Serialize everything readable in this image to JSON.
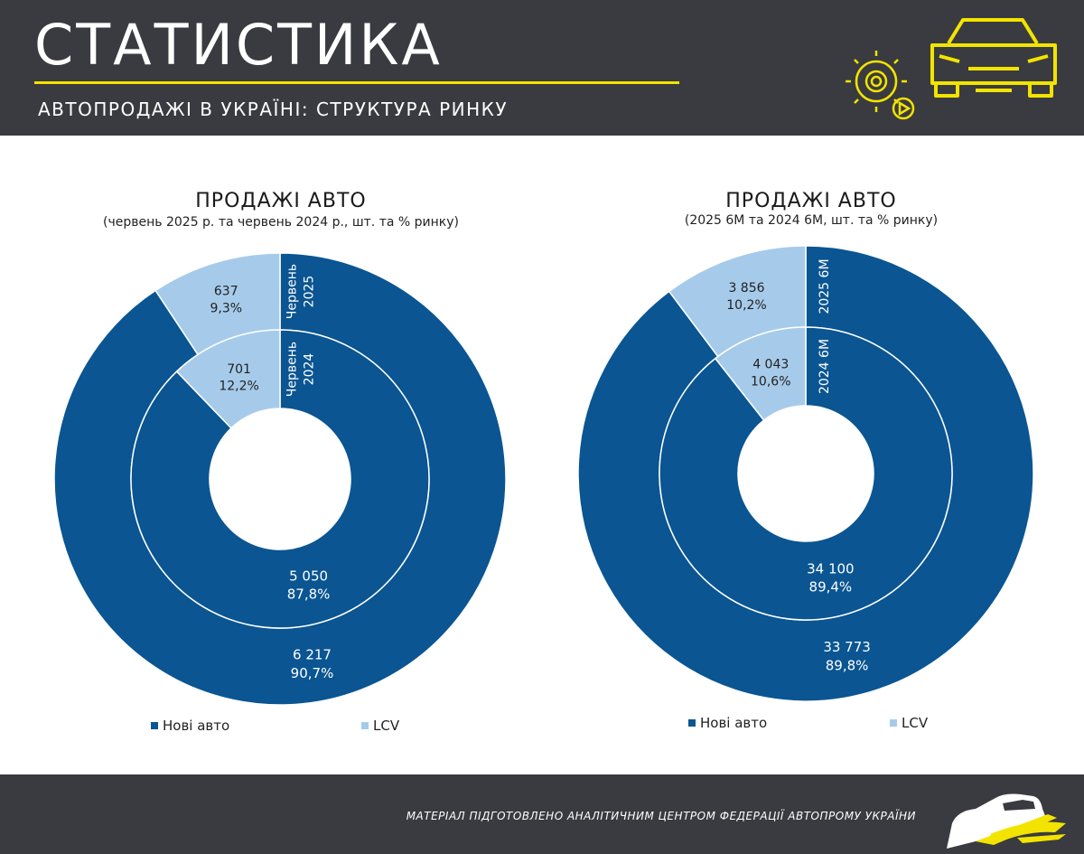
{
  "header": {
    "title": "СТАТИСТИКА",
    "subtitle": "АВТОПРОДАЖІ В УКРАЇНІ: СТРУКТУРА РИНКУ"
  },
  "footer": {
    "text": "МАТЕРІАЛ ПІДГОТОВЛЕНО АНАЛІТИЧНИМ ЦЕНТРОМ ФЕДЕРАЦІЇ АВТОПРОМУ УКРАЇНИ"
  },
  "colors": {
    "new_cars": "#0a5592",
    "lcv": "#a6cbea",
    "header_bg": "#3a3b40",
    "accent": "#f2e400"
  },
  "icons": [
    "gear-icon",
    "play-icon",
    "car-icon",
    "car-logo-icon"
  ],
  "chart_data": [
    {
      "type": "donut",
      "title": "ПРОДАЖІ АВТО",
      "subtitle": "(червень 2025 р. та червень 2024 р., шт. та % ринку)",
      "categories": [
        "Нові авто",
        "LCV"
      ],
      "rings": [
        {
          "name": "Червень 2025",
          "ring_label_lines": [
            "Червень",
            "2025"
          ],
          "position": "outer",
          "values": [
            6217,
            637
          ],
          "value_labels": [
            "6 217",
            "637"
          ],
          "percents": [
            "90,7%",
            "9,3%"
          ]
        },
        {
          "name": "Червень 2024",
          "ring_label_lines": [
            "Червень",
            "2024"
          ],
          "position": "inner",
          "values": [
            5050,
            701
          ],
          "value_labels": [
            "5 050",
            "701"
          ],
          "percents": [
            "87,8%",
            "12,2%"
          ]
        }
      ],
      "legend": [
        "Нові авто",
        "LCV"
      ],
      "legend_position": "bottom"
    },
    {
      "type": "donut",
      "title": "ПРОДАЖІ АВТО",
      "subtitle": "(2025 6М та 2024 6М, шт. та % ринку)",
      "categories": [
        "Нові авто",
        "LCV"
      ],
      "rings": [
        {
          "name": "2025 6М",
          "ring_label_lines": [
            "2025 6М"
          ],
          "position": "outer",
          "values": [
            33773,
            3856
          ],
          "value_labels": [
            "33 773",
            "3 856"
          ],
          "percents": [
            "89,8%",
            "10,2%"
          ]
        },
        {
          "name": "2024 6М",
          "ring_label_lines": [
            "2024 6М"
          ],
          "position": "inner",
          "values": [
            34100,
            4043
          ],
          "value_labels": [
            "34 100",
            "4 043"
          ],
          "percents": [
            "89,4%",
            "10,6%"
          ]
        }
      ],
      "legend": [
        "Нові авто",
        "LCV"
      ],
      "legend_position": "bottom"
    }
  ]
}
